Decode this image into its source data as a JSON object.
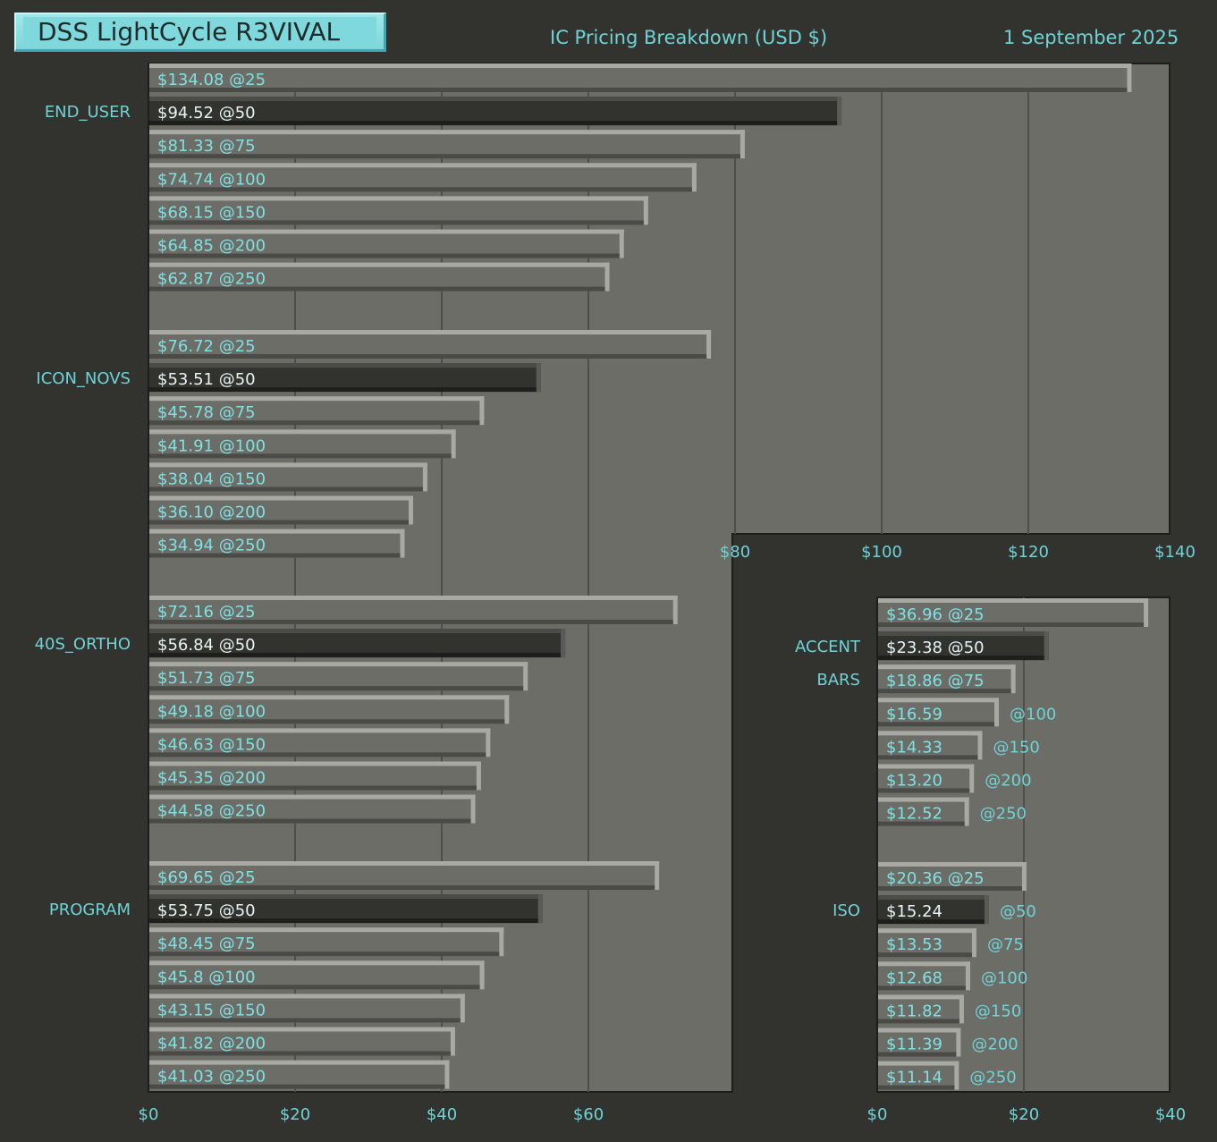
{
  "header": {
    "title": "DSS LightCycle R3VIVAL",
    "subtitle": "IC Pricing Breakdown (USD $)",
    "date": "1 September 2025"
  },
  "colors": {
    "background": "#32322f",
    "plot_bg": "#6d6d68",
    "text": "#6fd3d6",
    "bar": "#6d6d68",
    "bar_highlight": "#32322f",
    "bar_light_edge": "#a9a9a4",
    "bar_dark_edge": "#4a4a46",
    "grid": "#4e4e4a"
  },
  "chart_data": [
    {
      "type": "bar",
      "orientation": "horizontal",
      "title": "IC Pricing Breakdown (USD $)",
      "xlim": [
        0,
        140
      ],
      "ticks": [
        "$0",
        "$20",
        "$40",
        "$60",
        "$80",
        "$100",
        "$120",
        "$140"
      ],
      "tick_values": [
        0,
        20,
        40,
        60,
        80,
        100,
        120,
        140
      ],
      "highlight_index": 1,
      "groups": [
        {
          "name": "END_USER",
          "values": [
            134.08,
            94.52,
            81.33,
            74.74,
            68.15,
            64.85,
            62.87
          ],
          "labels": [
            "$134.08 @25",
            "$94.52 @50",
            "$81.33 @75",
            "$74.74 @100",
            "$68.15 @150",
            "$64.85 @200",
            "$62.87 @250"
          ]
        },
        {
          "name": "ICON_NOVS",
          "values": [
            76.72,
            53.51,
            45.78,
            41.91,
            38.04,
            36.1,
            34.94
          ],
          "labels": [
            "$76.72 @25",
            "$53.51 @50",
            "$45.78 @75",
            "$41.91 @100",
            "$38.04 @150",
            "$36.10 @200",
            "$34.94 @250"
          ]
        },
        {
          "name": "40S_ORTHO",
          "values": [
            72.16,
            56.84,
            51.73,
            49.18,
            46.63,
            45.35,
            44.58
          ],
          "labels": [
            "$72.16 @25",
            "$56.84 @50",
            "$51.73 @75",
            "$49.18 @100",
            "$46.63 @150",
            "$45.35 @200",
            "$44.58 @250"
          ]
        },
        {
          "name": "PROGRAM",
          "values": [
            69.65,
            53.75,
            48.45,
            45.8,
            43.15,
            41.82,
            41.03
          ],
          "labels": [
            "$69.65 @25",
            "$53.75 @50",
            "$48.45 @75",
            "$45.8 @100",
            "$43.15 @150",
            "$41.82 @200",
            "$41.03 @250"
          ]
        }
      ]
    },
    {
      "type": "bar",
      "orientation": "horizontal",
      "xlim": [
        0,
        40
      ],
      "ticks": [
        "$0",
        "$20",
        "$40"
      ],
      "tick_values": [
        0,
        20,
        40
      ],
      "highlight_index": 1,
      "groups": [
        {
          "name": "ACCENT BARS",
          "label_lines": [
            "ACCENT",
            "BARS"
          ],
          "values": [
            36.96,
            23.38,
            18.86,
            16.59,
            14.33,
            13.2,
            12.52
          ],
          "labels": [
            "$36.96 @25",
            "$23.38 @50",
            "$18.86 @75",
            "$16.59",
            "$14.33",
            "$13.20",
            "$12.52"
          ],
          "outside_labels": [
            "",
            "",
            "",
            "@100",
            "@150",
            "@200",
            "@250"
          ]
        },
        {
          "name": "ISO",
          "label_lines": [
            "ISO"
          ],
          "values": [
            20.36,
            15.24,
            13.53,
            12.68,
            11.82,
            11.39,
            11.14
          ],
          "labels": [
            "$20.36 @25",
            "$15.24",
            "$13.53",
            "$12.68",
            "$11.82",
            "$11.39",
            "$11.14"
          ],
          "outside_labels": [
            "",
            "@50",
            "@75",
            "@100",
            "@150",
            "@200",
            "@250"
          ]
        }
      ]
    }
  ]
}
